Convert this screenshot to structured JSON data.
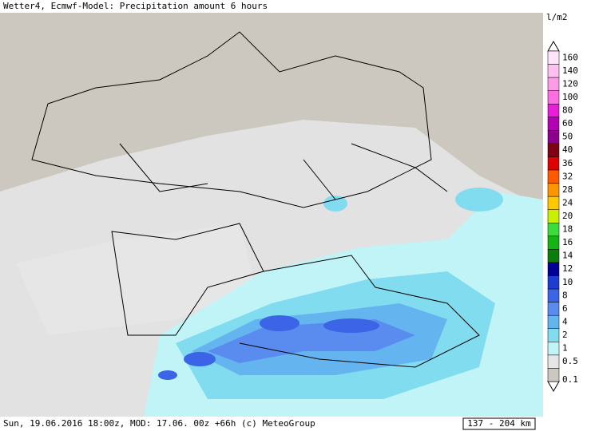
{
  "header": {
    "title": "Wetter4, Ecmwf-Model: Precipitation amount 6 hours"
  },
  "legend": {
    "unit": "l/m2",
    "items": [
      {
        "label": "160",
        "color": "#ffe4fa"
      },
      {
        "label": "140",
        "color": "#ffc0f0"
      },
      {
        "label": "120",
        "color": "#ff9ce8"
      },
      {
        "label": "100",
        "color": "#ff6ee0"
      },
      {
        "label": "80",
        "color": "#e81ed8"
      },
      {
        "label": "60",
        "color": "#b400b4"
      },
      {
        "label": "50",
        "color": "#8c008c"
      },
      {
        "label": "40",
        "color": "#800014"
      },
      {
        "label": "36",
        "color": "#e00000"
      },
      {
        "label": "32",
        "color": "#ff5a00"
      },
      {
        "label": "28",
        "color": "#ff9600"
      },
      {
        "label": "24",
        "color": "#ffc800"
      },
      {
        "label": "20",
        "color": "#c8f000"
      },
      {
        "label": "18",
        "color": "#3cdc3c"
      },
      {
        "label": "16",
        "color": "#14b414"
      },
      {
        "label": "14",
        "color": "#0a7d0a"
      },
      {
        "label": "12",
        "color": "#000096"
      },
      {
        "label": "10",
        "color": "#1e3cd2"
      },
      {
        "label": "8",
        "color": "#3c64e6"
      },
      {
        "label": "6",
        "color": "#5a8cf0"
      },
      {
        "label": "4",
        "color": "#64b4f0"
      },
      {
        "label": "2",
        "color": "#82dcf0"
      },
      {
        "label": "1",
        "color": "#c0f4f6"
      },
      {
        "label": "0.5",
        "color": "#e6e6e6"
      },
      {
        "label": "0.1",
        "color": "#ccc8c0"
      }
    ]
  },
  "footer": {
    "text": "Sun, 19.06.2016 18:00z, MOD: 17.06. 00z +66h (c) MeteoGroup",
    "scale": "137 - 204 km"
  }
}
